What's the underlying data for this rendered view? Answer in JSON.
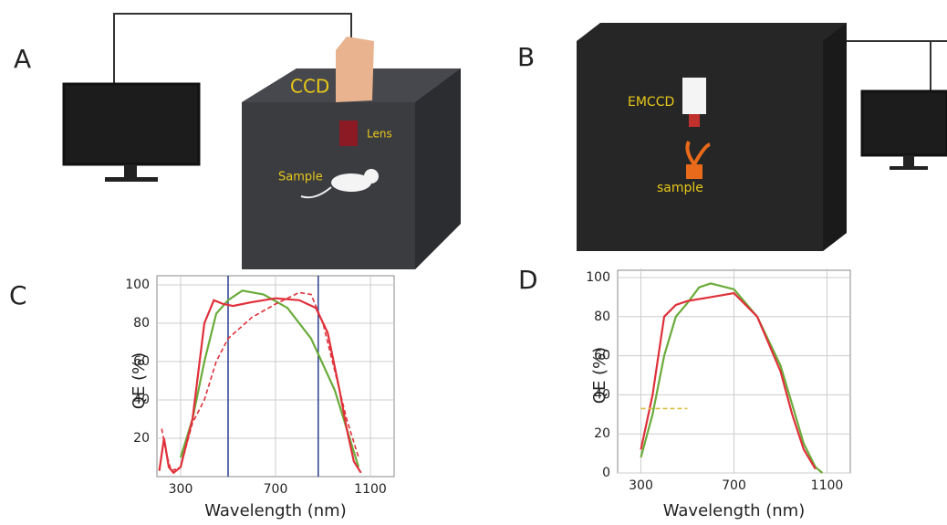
{
  "panels": {
    "a": "A",
    "b": "B",
    "c": "C",
    "d": "D"
  },
  "diagram_a": {
    "camera": "CCD",
    "lens": "Lens",
    "sample": "Sample"
  },
  "diagram_b": {
    "camera": "EMCCD",
    "sample": "sample"
  },
  "chart_data": [
    {
      "type": "line",
      "y_label": "QE (%)",
      "x_label": "Wavelength (nm)",
      "xlim": [
        200,
        1200
      ],
      "ylim": [
        0,
        100
      ],
      "xticks": [
        300,
        700,
        1100
      ],
      "yticks": [
        20,
        40,
        60,
        80,
        100
      ],
      "grid": true,
      "vlines": [
        500,
        880
      ],
      "vline_color": "#2a3f8f",
      "series": [
        {
          "color": "#6aab3a",
          "dash": false,
          "x": [
            300,
            350,
            400,
            450,
            500,
            560,
            650,
            750,
            850,
            950,
            1000,
            1050
          ],
          "values": [
            10,
            30,
            60,
            85,
            92,
            97,
            95,
            88,
            72,
            45,
            25,
            5
          ]
        },
        {
          "color": "#e0303a",
          "dash": false,
          "x": [
            210,
            230,
            250,
            270,
            300,
            350,
            400,
            440,
            480,
            520,
            600,
            700,
            800,
            870,
            920,
            970,
            1000,
            1030,
            1060
          ],
          "values": [
            3,
            20,
            5,
            2,
            5,
            30,
            80,
            92,
            90,
            89,
            91,
            93,
            92,
            88,
            75,
            45,
            25,
            8,
            2
          ]
        },
        {
          "color": "#e0303a",
          "dash": true,
          "x": [
            220,
            240,
            260,
            300,
            350,
            400,
            450,
            500,
            600,
            700,
            800,
            850,
            900,
            950,
            1000,
            1050
          ],
          "values": [
            25,
            12,
            3,
            5,
            28,
            40,
            60,
            72,
            83,
            90,
            96,
            95,
            80,
            55,
            30,
            10
          ]
        }
      ]
    },
    {
      "type": "line",
      "y_label": "QE (%)",
      "x_label": "Wavelength (nm)",
      "xlim": [
        200,
        1200
      ],
      "ylim": [
        0,
        100
      ],
      "xticks": [
        300,
        700,
        1100
      ],
      "yticks": [
        0,
        20,
        40,
        60,
        80,
        100
      ],
      "grid": true,
      "series": [
        {
          "color": "#6aab3a",
          "dash": false,
          "x": [
            300,
            350,
            400,
            450,
            500,
            550,
            600,
            700,
            800,
            900,
            950,
            1000,
            1050,
            1080
          ],
          "values": [
            8,
            30,
            60,
            80,
            87,
            95,
            97,
            94,
            80,
            55,
            35,
            15,
            3,
            0
          ]
        },
        {
          "color": "#e0303a",
          "dash": false,
          "x": [
            300,
            350,
            400,
            450,
            500,
            600,
            700,
            800,
            900,
            950,
            1000,
            1050
          ],
          "values": [
            12,
            40,
            80,
            86,
            88,
            90,
            92,
            80,
            52,
            30,
            12,
            2
          ]
        },
        {
          "color": "#d8c040",
          "dash": true,
          "x": [
            300,
            500
          ],
          "values": [
            33,
            33
          ]
        }
      ]
    }
  ]
}
